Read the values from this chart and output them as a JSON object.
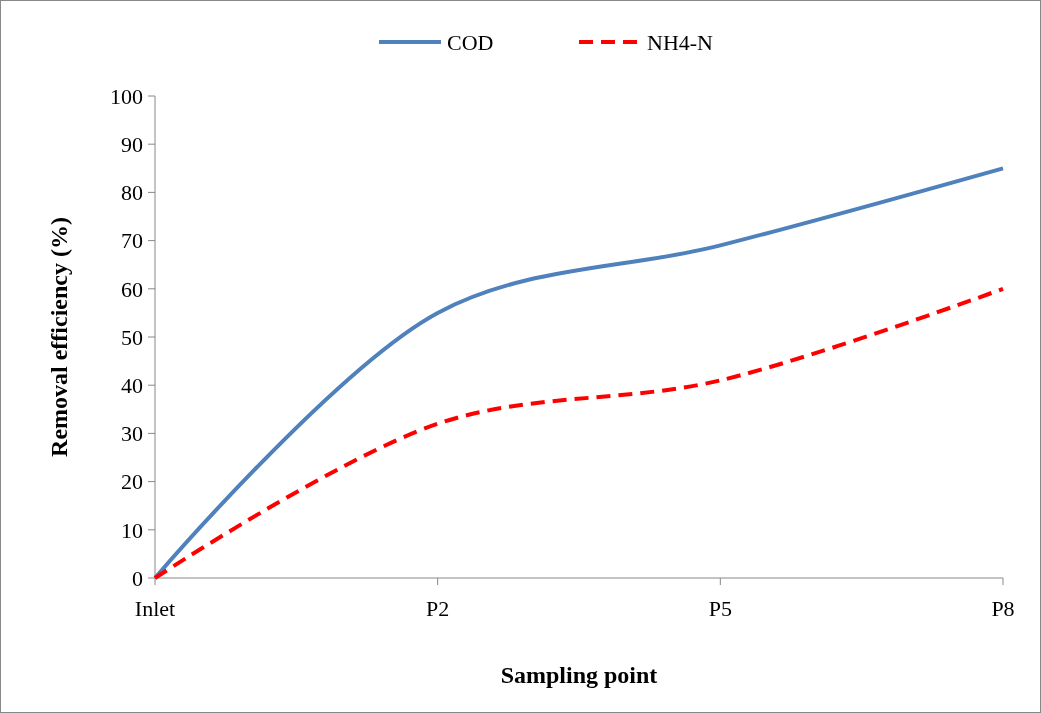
{
  "chart_data": {
    "type": "line",
    "xlabel": "Sampling point",
    "ylabel": "Removal efficiency (%)",
    "categories": [
      "Inlet",
      "P2",
      "P5",
      "P8"
    ],
    "series": [
      {
        "name": "COD",
        "color": "#4f81bd",
        "values": [
          0,
          55,
          69,
          85
        ],
        "line_style": "solid"
      },
      {
        "name": "NH4-N",
        "color": "#ff0000",
        "values": [
          0,
          32,
          41,
          60
        ],
        "line_style": "dashed"
      }
    ],
    "ylim": [
      0,
      100
    ],
    "yticks": [
      0,
      10,
      20,
      30,
      40,
      50,
      60,
      70,
      80,
      90,
      100
    ],
    "legend": "top",
    "marker": "none",
    "grid": false
  }
}
